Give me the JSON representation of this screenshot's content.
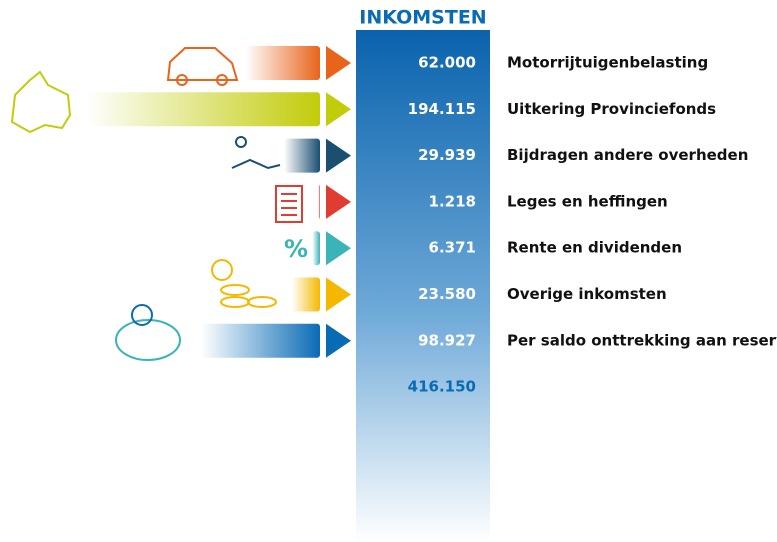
{
  "chart_data": {
    "type": "bar",
    "title": "INKOMSTEN",
    "categories": [
      "Motorrijtuigenbelasting",
      "Uitkering Provinciefonds",
      "Bijdragen andere overheden",
      "Leges en heffingen",
      "Rente en dividenden",
      "Overige inkomsten",
      "Per saldo onttrekking aan reserves"
    ],
    "values": [
      62000,
      194115,
      29939,
      1218,
      6371,
      23580,
      98927
    ],
    "value_labels": [
      "62.000",
      "194.115",
      "29.939",
      "1.218",
      "6.371",
      "23.580",
      "98.927"
    ],
    "colors": [
      "#e8641b",
      "#c2cc0a",
      "#1b4f72",
      "#e03c31",
      "#3bb4b8",
      "#f5b800",
      "#0a6bb5"
    ],
    "total": {
      "value": 416150,
      "label": "416.150"
    }
  }
}
